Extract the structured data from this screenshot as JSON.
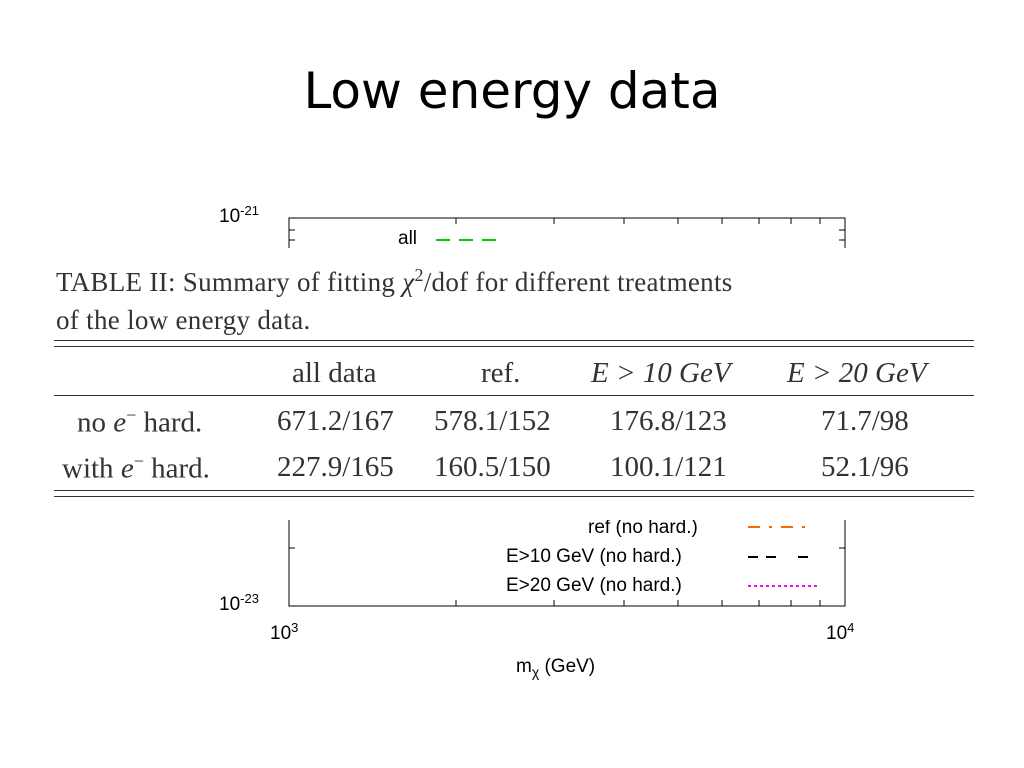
{
  "slide": {
    "title": "Low energy data"
  },
  "plot": {
    "y_tick_top": {
      "base": "10",
      "exp": "-21"
    },
    "y_tick_bottom": {
      "base": "10",
      "exp": "-23"
    },
    "x_tick_left": {
      "base": "10",
      "exp": "3"
    },
    "x_tick_right": {
      "base": "10",
      "exp": "4"
    },
    "xlabel": {
      "base": "m",
      "sub": "χ",
      "unit": " (GeV)"
    },
    "legend": [
      {
        "label": "all",
        "color": "#00cc00",
        "style": "dashed"
      },
      {
        "label": "ref (no hard.)",
        "color": "#ff6600",
        "style": "dashdot"
      },
      {
        "label": "E>10 GeV (no hard.)",
        "color": "#000000",
        "style": "dashed"
      },
      {
        "label": "E>20 GeV (no hard.)",
        "color": "#ff00ff",
        "style": "dotted"
      }
    ]
  },
  "table": {
    "caption_prefix": "TABLE II: Summary of fitting ",
    "caption_math": "χ",
    "caption_sup": "2",
    "caption_suffix": "/dof for different treatments",
    "caption_line2": "of the low energy data.",
    "headers": [
      "all data",
      "ref.",
      "E > 10 GeV",
      "E > 20 GeV"
    ],
    "rows": [
      {
        "label_pre": "no ",
        "label_math": "e",
        "label_sup": "−",
        "label_post": " hard.",
        "values": [
          "671.2/167",
          "578.1/152",
          "176.8/123",
          "71.7/98"
        ]
      },
      {
        "label_pre": "with ",
        "label_math": "e",
        "label_sup": "−",
        "label_post": " hard.",
        "values": [
          "227.9/165",
          "160.5/150",
          "100.1/121",
          "52.1/96"
        ]
      }
    ]
  }
}
